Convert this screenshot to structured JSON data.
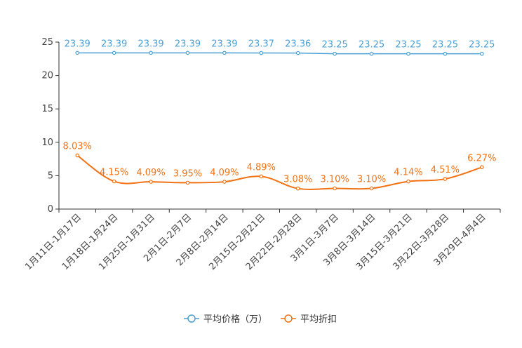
{
  "chart_data": {
    "type": "line",
    "categories": [
      "1月11日-1月17日",
      "1月18日-1月24日",
      "1月25日-1月31日",
      "2月1日-2月7日",
      "2月8日-2月14日",
      "2月15日-2月21日",
      "2月22日-2月28日",
      "3月1日-3月7日",
      "3月8日-3月14日",
      "3月15日-3月21日",
      "3月22日-3月28日",
      "3月29日-4月4日"
    ],
    "series": [
      {
        "name": "平均价格（万）",
        "color": "#4a9fd4",
        "values": [
          23.39,
          23.39,
          23.39,
          23.39,
          23.39,
          23.37,
          23.36,
          23.25,
          23.25,
          23.25,
          23.25,
          23.25
        ],
        "labels": [
          "23.39",
          "23.39",
          "23.39",
          "23.39",
          "23.39",
          "23.37",
          "23.36",
          "23.25",
          "23.25",
          "23.25",
          "23.25",
          "23.25"
        ]
      },
      {
        "name": "平均折扣",
        "color": "#f07214",
        "values": [
          8.03,
          4.15,
          4.09,
          3.95,
          4.09,
          4.89,
          3.08,
          3.1,
          3.1,
          4.14,
          4.51,
          6.27
        ],
        "labels": [
          "8.03%",
          "4.15%",
          "4.09%",
          "3.95%",
          "4.09%",
          "4.89%",
          "3.08%",
          "3.10%",
          "3.10%",
          "4.14%",
          "4.51%",
          "6.27%"
        ]
      }
    ],
    "ylim": [
      0,
      25
    ],
    "yticks": [
      "0",
      "5",
      "10",
      "15",
      "20",
      "25"
    ],
    "ytick_values": [
      0,
      5,
      10,
      15,
      20,
      25
    ],
    "title": "",
    "xlabel": "",
    "ylabel": "",
    "legend_position": "bottom-center",
    "axis_color": "#333333"
  }
}
